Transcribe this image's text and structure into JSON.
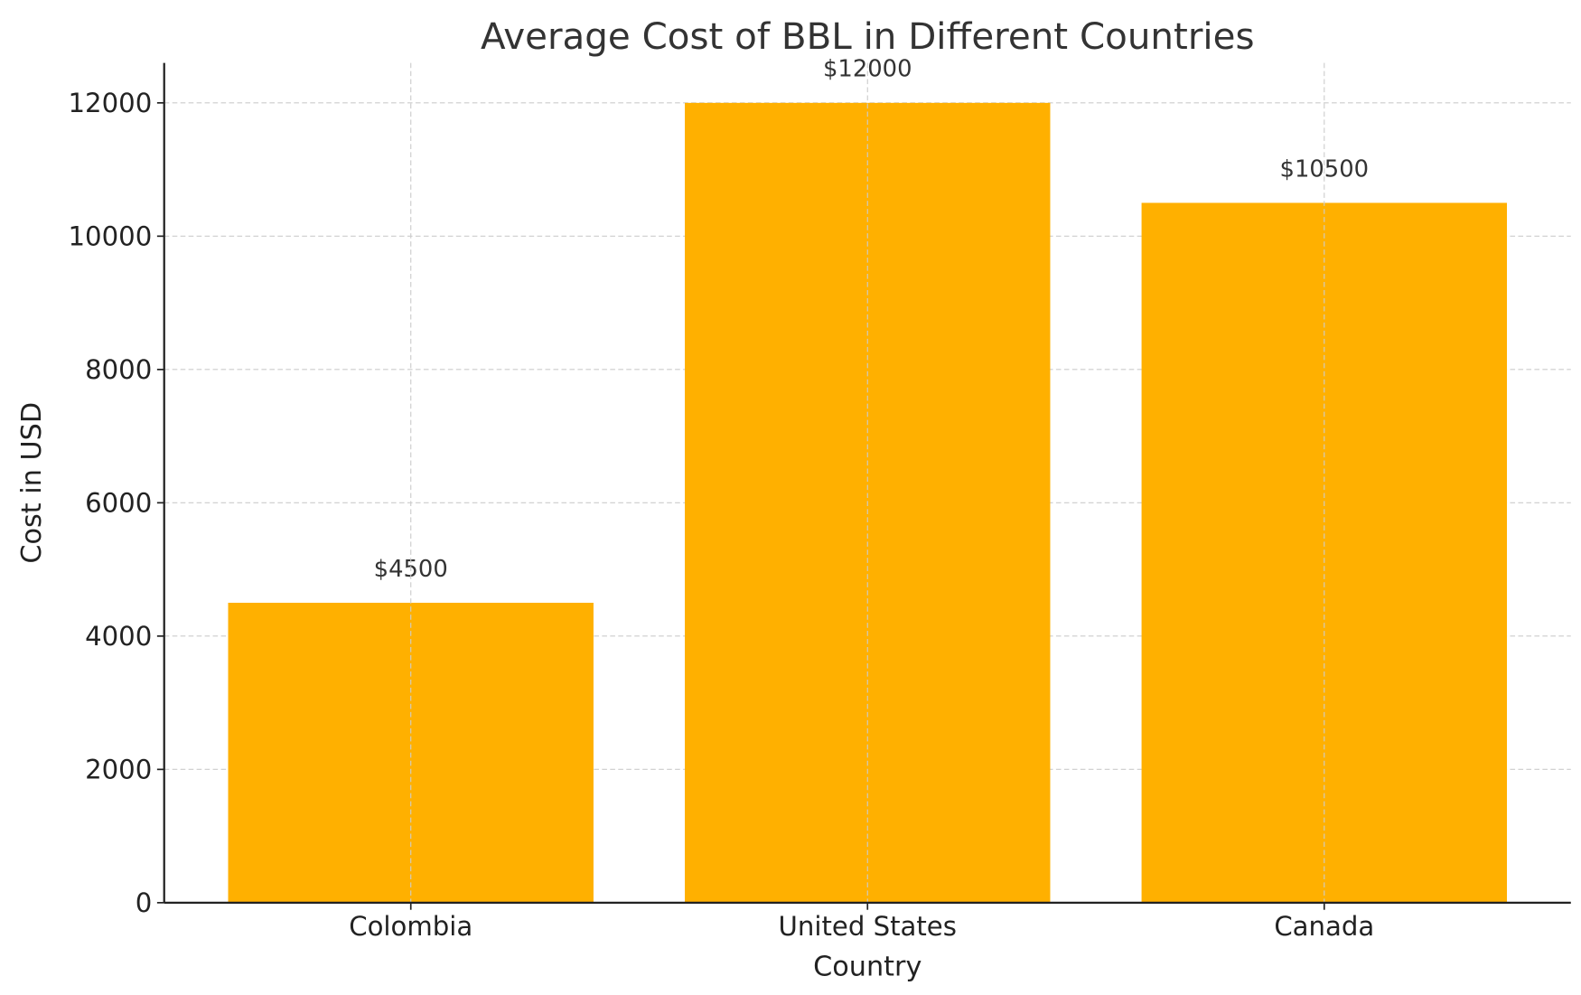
{
  "chart_data": {
    "type": "bar",
    "title": "Average Cost of BBL in Different Countries",
    "xlabel": "Country",
    "ylabel": "Cost in USD",
    "categories": [
      "Colombia",
      "United States",
      "Canada"
    ],
    "values": [
      4500,
      12000,
      10500
    ],
    "data_labels": [
      "$4500",
      "$12000",
      "$10500"
    ],
    "ylim": [
      0,
      12600
    ],
    "yticks": [
      0,
      2000,
      4000,
      6000,
      8000,
      10000,
      12000
    ],
    "ytick_labels": [
      "0",
      "2000",
      "4000",
      "6000",
      "8000",
      "10000",
      "12000"
    ],
    "grid": true,
    "bar_color": "#FFB000",
    "grid_color": "#CCCCCC"
  }
}
